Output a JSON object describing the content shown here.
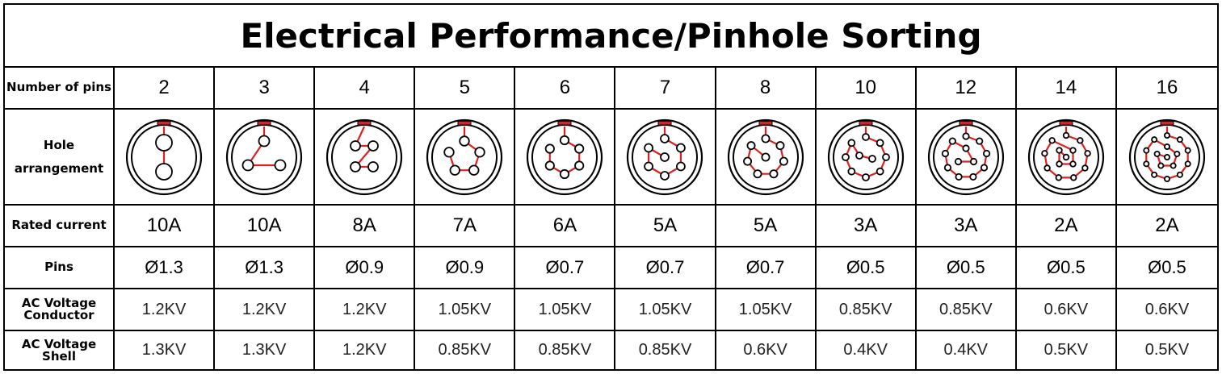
{
  "title": "Electrical Performance/Pinhole Sorting",
  "row_labels": {
    "pins_count": "Number of pins",
    "hole_line1": "Hole",
    "hole_line2": "arrangement",
    "rated_current": "Rated current",
    "pins": "Pins",
    "ac_cond_line1": "AC Voltage",
    "ac_cond_line2": "Conductor",
    "ac_shell_line1": "AC Voltage",
    "ac_shell_line2": "Shell"
  },
  "columns": [
    {
      "pins": "2",
      "current": "10A",
      "diameter": "Ø1.3",
      "ac_conductor": "1.2KV",
      "ac_shell": "1.3KV",
      "icon": "2-pin-layout-icon"
    },
    {
      "pins": "3",
      "current": "10A",
      "diameter": "Ø1.3",
      "ac_conductor": "1.2KV",
      "ac_shell": "1.3KV",
      "icon": "3-pin-layout-icon"
    },
    {
      "pins": "4",
      "current": "8A",
      "diameter": "Ø0.9",
      "ac_conductor": "1.2KV",
      "ac_shell": "1.2KV",
      "icon": "4-pin-layout-icon"
    },
    {
      "pins": "5",
      "current": "7A",
      "diameter": "Ø0.9",
      "ac_conductor": "1.05KV",
      "ac_shell": "0.85KV",
      "icon": "5-pin-layout-icon"
    },
    {
      "pins": "6",
      "current": "6A",
      "diameter": "Ø0.7",
      "ac_conductor": "1.05KV",
      "ac_shell": "0.85KV",
      "icon": "6-pin-layout-icon"
    },
    {
      "pins": "7",
      "current": "5A",
      "diameter": "Ø0.7",
      "ac_conductor": "1.05KV",
      "ac_shell": "0.85KV",
      "icon": "7-pin-layout-icon"
    },
    {
      "pins": "8",
      "current": "5A",
      "diameter": "Ø0.7",
      "ac_conductor": "1.05KV",
      "ac_shell": "0.6KV",
      "icon": "8-pin-layout-icon"
    },
    {
      "pins": "10",
      "current": "3A",
      "diameter": "Ø0.5",
      "ac_conductor": "0.85KV",
      "ac_shell": "0.4KV",
      "icon": "10-pin-layout-icon"
    },
    {
      "pins": "12",
      "current": "3A",
      "diameter": "Ø0.5",
      "ac_conductor": "0.85KV",
      "ac_shell": "0.4KV",
      "icon": "12-pin-layout-icon"
    },
    {
      "pins": "14",
      "current": "2A",
      "diameter": "Ø0.5",
      "ac_conductor": "0.6KV",
      "ac_shell": "0.5KV",
      "icon": "14-pin-layout-icon"
    },
    {
      "pins": "16",
      "current": "2A",
      "diameter": "Ø0.5",
      "ac_conductor": "0.6KV",
      "ac_shell": "0.5KV",
      "icon": "16-pin-layout-icon"
    }
  ],
  "colors": {
    "border": "#000000",
    "accent": "#e02020",
    "text": "#000000"
  }
}
